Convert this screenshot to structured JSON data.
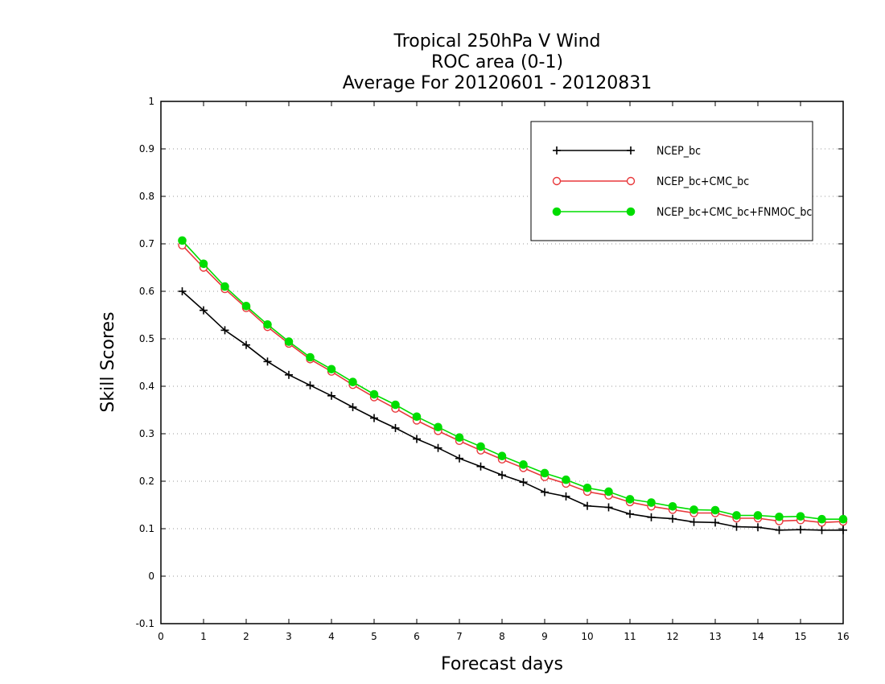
{
  "chart_data": {
    "type": "line",
    "title_lines": [
      "Tropical 250hPa V Wind",
      "ROC area (0-1)",
      "Average For 20120601 - 20120831"
    ],
    "xlabel": "Forecast days",
    "ylabel": "Skill Scores",
    "xlim": [
      0,
      16
    ],
    "ylim": [
      -0.1,
      1
    ],
    "x_ticks": [
      0,
      1,
      2,
      3,
      4,
      5,
      6,
      7,
      8,
      9,
      10,
      11,
      12,
      13,
      14,
      15,
      16
    ],
    "x_tick_labels": [
      "0",
      "1",
      "2",
      "3",
      "4",
      "5",
      "6",
      "7",
      "8",
      "9",
      "10",
      "11",
      "12",
      "13",
      "14",
      "15",
      "16"
    ],
    "y_ticks": [
      -0.1,
      0,
      0.1,
      0.2,
      0.3,
      0.4,
      0.5,
      0.6,
      0.7,
      0.8,
      0.9,
      1
    ],
    "y_tick_labels": [
      "-0.1",
      "0",
      "0.1",
      "0.2",
      "0.3",
      "0.4",
      "0.5",
      "0.6",
      "0.7",
      "0.8",
      "0.9",
      "1"
    ],
    "grid": true,
    "legend_position": "top-right",
    "x": [
      0.5,
      1,
      1.5,
      2,
      2.5,
      3,
      3.5,
      4,
      4.5,
      5,
      5.5,
      6,
      6.5,
      7,
      7.5,
      8,
      8.5,
      9,
      9.5,
      10,
      10.5,
      11,
      11.5,
      12,
      12.5,
      13,
      13.5,
      14,
      14.5,
      15,
      15.5,
      16
    ],
    "series": [
      {
        "name": "NCEP_bc",
        "color": "#000000",
        "marker": "plus",
        "values": [
          0.6,
          0.56,
          0.518,
          0.487,
          0.452,
          0.424,
          0.402,
          0.38,
          0.356,
          0.333,
          0.312,
          0.289,
          0.27,
          0.248,
          0.231,
          0.213,
          0.198,
          0.177,
          0.168,
          0.148,
          0.145,
          0.131,
          0.124,
          0.121,
          0.114,
          0.113,
          0.104,
          0.103,
          0.097,
          0.098,
          0.097,
          0.097
        ]
      },
      {
        "name": "NCEP_bc+CMC_bc",
        "color": "#e8383b",
        "marker": "open-circle",
        "values": [
          0.697,
          0.65,
          0.605,
          0.565,
          0.525,
          0.49,
          0.457,
          0.431,
          0.403,
          0.377,
          0.353,
          0.328,
          0.306,
          0.285,
          0.265,
          0.246,
          0.228,
          0.209,
          0.195,
          0.178,
          0.17,
          0.156,
          0.147,
          0.14,
          0.133,
          0.133,
          0.122,
          0.122,
          0.116,
          0.118,
          0.113,
          0.115
        ]
      },
      {
        "name": "NCEP_bc+CMC_bc+FNMOC_bc",
        "color": "#00dd00",
        "marker": "filled-circle",
        "values": [
          0.707,
          0.658,
          0.61,
          0.569,
          0.53,
          0.494,
          0.461,
          0.436,
          0.409,
          0.383,
          0.361,
          0.336,
          0.314,
          0.292,
          0.273,
          0.253,
          0.235,
          0.217,
          0.203,
          0.186,
          0.178,
          0.162,
          0.155,
          0.147,
          0.14,
          0.139,
          0.128,
          0.128,
          0.125,
          0.126,
          0.12,
          0.12
        ]
      }
    ]
  }
}
